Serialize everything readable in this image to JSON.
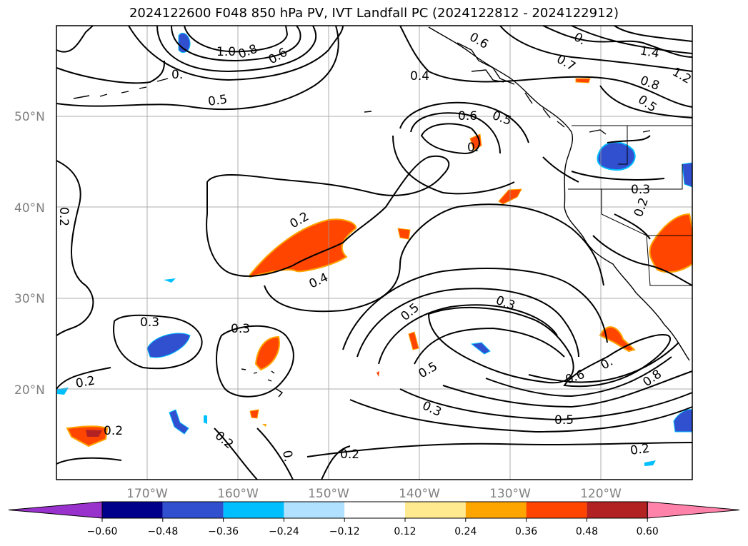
{
  "title": "2024122600 F048 850 hPa PV, IVT Landfall PC (2024122812 - 2024122912)",
  "lat_labels": [
    "50°N",
    "40°N",
    "30°N",
    "20°N"
  ],
  "lon_labels": [
    "170°W",
    "160°W",
    "150°W",
    "140°W",
    "130°W",
    "120°W"
  ],
  "colorbar": {
    "ticks": [
      "−0.60",
      "−0.48",
      "−0.36",
      "−0.24",
      "−0.12",
      "0.12",
      "0.24",
      "0.36",
      "0.48",
      "0.60"
    ],
    "colors": [
      "#9932cc",
      "#00008b",
      "#3050d0",
      "#00bfff",
      "#b0e2ff",
      "#ffffff",
      "#ffea8f",
      "#ffa500",
      "#ff4500",
      "#b22222",
      "#ff82ab"
    ]
  },
  "contour_labels": [
    "1.0",
    "0.8",
    "0.6",
    "0.",
    "0.5",
    "0.4",
    "0.6",
    "0.5",
    "0.",
    "0.6",
    "0.",
    "0.7",
    "1.4",
    "1.2",
    "0.8",
    "0.5",
    "0.3",
    "0.2",
    "0.2",
    "0.4",
    "0.2",
    "0.5",
    "0.3",
    "0.3",
    "0.5",
    "0.3",
    "0.2",
    "0.3",
    "0.2",
    "0.6",
    "0.",
    "0.8",
    "0.5",
    "0.2",
    "0.2",
    "0.2",
    "0."
  ],
  "colors": {
    "contour": "#000000",
    "grid": "#999999",
    "coast": "#000000"
  }
}
